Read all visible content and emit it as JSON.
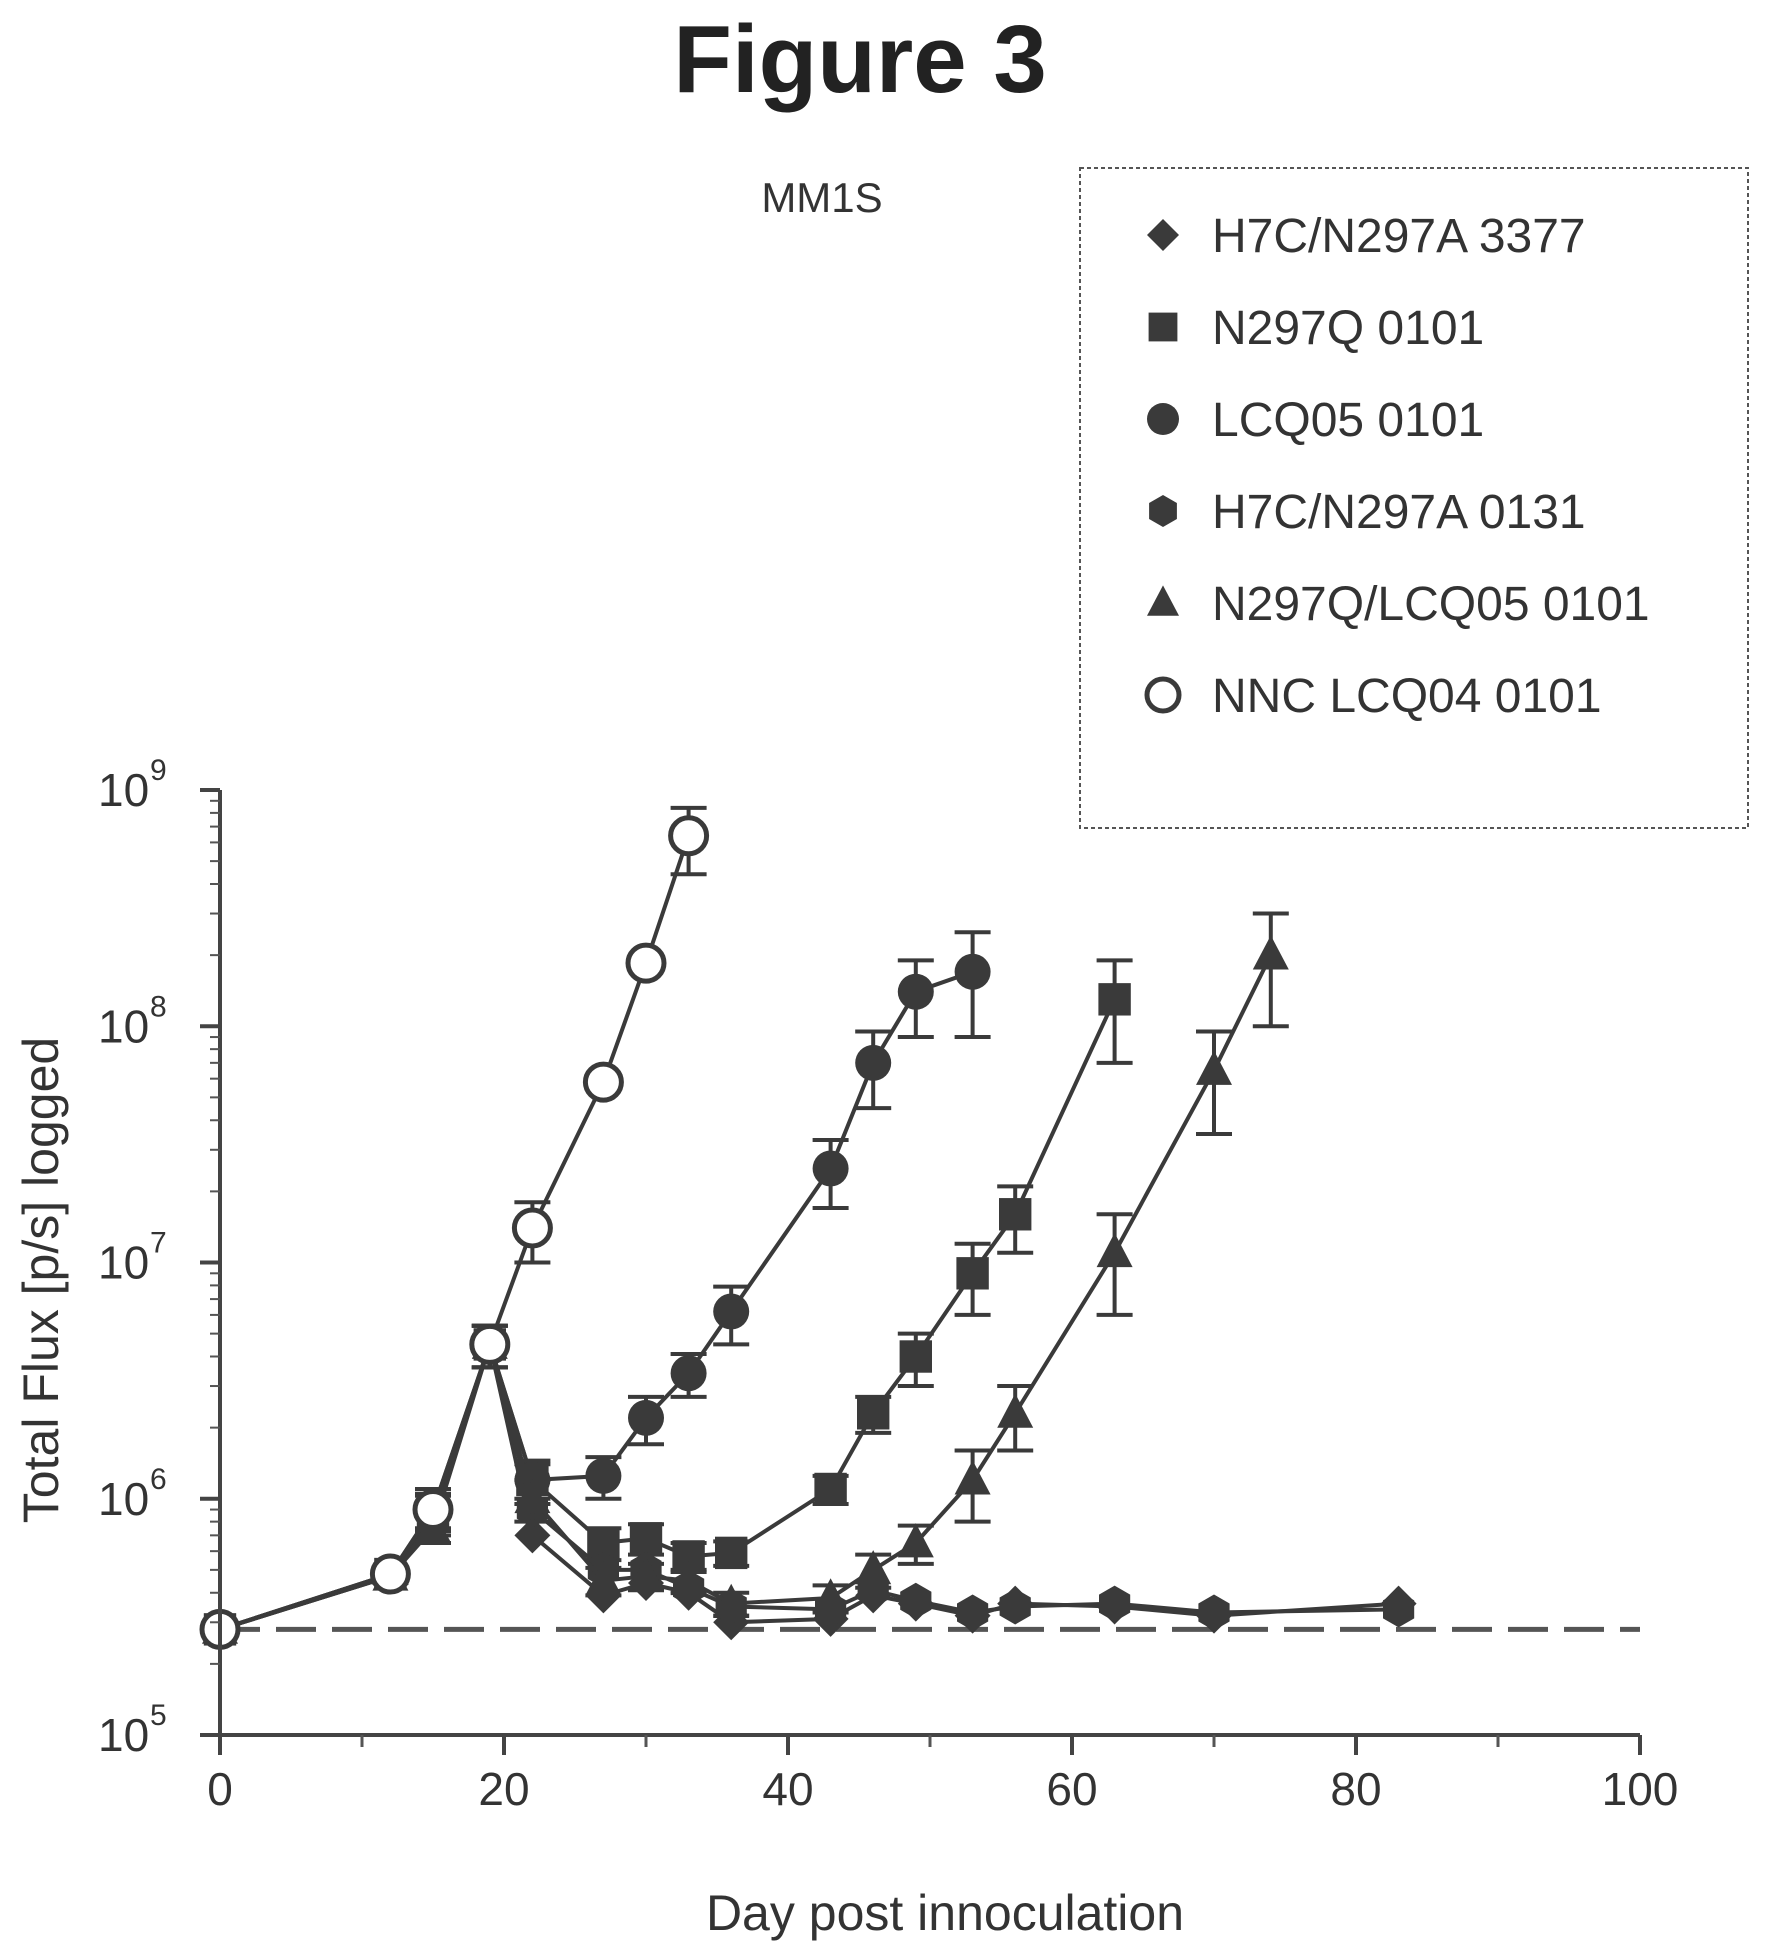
{
  "figure_title": "Figure 3",
  "chart_data": {
    "type": "line",
    "title": "MM1S",
    "xlabel": "Day post innoculation",
    "ylabel": "Total Flux [p/s] logged",
    "xlim": [
      0,
      100
    ],
    "ylim": [
      100000,
      1000000000
    ],
    "yscale": "log",
    "x_ticks": [
      "0",
      "20",
      "40",
      "60",
      "80",
      "100"
    ],
    "y_ticks": [
      {
        "value": 100000,
        "base": "10",
        "exp": "5"
      },
      {
        "value": 1000000,
        "base": "10",
        "exp": "6"
      },
      {
        "value": 10000000,
        "base": "10",
        "exp": "7"
      },
      {
        "value": 100000000,
        "base": "10",
        "exp": "8"
      },
      {
        "value": 1000000000,
        "base": "10",
        "exp": "9"
      }
    ],
    "legend_position": "top-right",
    "baseline": {
      "value": 280000,
      "style": "dashed"
    },
    "series": [
      {
        "name": "H7C/N297A 3377",
        "marker": "diamond",
        "x": [
          0,
          12,
          15,
          19,
          22,
          27,
          30,
          33,
          36,
          43,
          46,
          49,
          53,
          56,
          63,
          70,
          83
        ],
        "y": [
          280000,
          470000,
          850000,
          4500000,
          700000,
          390000,
          440000,
          400000,
          300000,
          310000,
          390000,
          360000,
          320000,
          360000,
          350000,
          320000,
          360000
        ]
      },
      {
        "name": "N297Q 0101",
        "marker": "square",
        "x": [
          0,
          12,
          15,
          19,
          22,
          27,
          30,
          33,
          36,
          43,
          46,
          49,
          53,
          56,
          63
        ],
        "y": [
          280000,
          480000,
          880000,
          4500000,
          1200000,
          650000,
          680000,
          570000,
          590000,
          1100000,
          2300000,
          4000000,
          9000000,
          16000000,
          130000000
        ],
        "err": [
          0,
          30000,
          150000,
          900000,
          200000,
          100000,
          100000,
          80000,
          70000,
          150000,
          400000,
          1000000,
          3000000,
          5000000,
          60000000
        ]
      },
      {
        "name": "LCQ05 0101",
        "marker": "circle",
        "x": [
          0,
          12,
          15,
          19,
          22,
          27,
          30,
          33,
          36,
          43,
          46,
          49,
          53
        ],
        "y": [
          280000,
          480000,
          900000,
          4500000,
          1200000,
          1250000,
          2200000,
          3400000,
          6200000,
          25000000,
          70000000,
          140000000,
          170000000
        ],
        "err": [
          0,
          30000,
          200000,
          900000,
          250000,
          250000,
          500000,
          700000,
          1700000,
          8000000,
          25000000,
          50000000,
          80000000
        ]
      },
      {
        "name": "H7C/N297A 0131",
        "marker": "hexagon",
        "x": [
          0,
          12,
          15,
          19,
          22,
          27,
          30,
          33,
          36,
          43,
          46,
          49,
          53,
          56,
          63,
          70,
          83
        ],
        "y": [
          280000,
          470000,
          800000,
          4500000,
          900000,
          500000,
          500000,
          420000,
          350000,
          340000,
          410000,
          370000,
          330000,
          350000,
          360000,
          330000,
          340000
        ]
      },
      {
        "name": "N297Q/LCQ05 0101",
        "marker": "triangle",
        "x": [
          0,
          12,
          15,
          19,
          22,
          27,
          30,
          33,
          36,
          43,
          46,
          49,
          53,
          56,
          63,
          70,
          74
        ],
        "y": [
          280000,
          470000,
          750000,
          4500000,
          1000000,
          450000,
          470000,
          450000,
          360000,
          380000,
          500000,
          650000,
          1200000,
          2300000,
          11000000,
          65000000,
          200000000
        ],
        "err": [
          0,
          30000,
          100000,
          900000,
          200000,
          60000,
          60000,
          50000,
          40000,
          50000,
          80000,
          120000,
          400000,
          700000,
          5000000,
          30000000,
          100000000
        ]
      },
      {
        "name": "NNC LCQ04 0101",
        "marker": "open-circle",
        "x": [
          0,
          12,
          15,
          19,
          22,
          27,
          30,
          33
        ],
        "y": [
          280000,
          480000,
          900000,
          4500000,
          14000000,
          58000000,
          185000000,
          640000000
        ],
        "err": [
          0,
          30000,
          150000,
          900000,
          4000000,
          0,
          0,
          200000000
        ]
      }
    ]
  }
}
